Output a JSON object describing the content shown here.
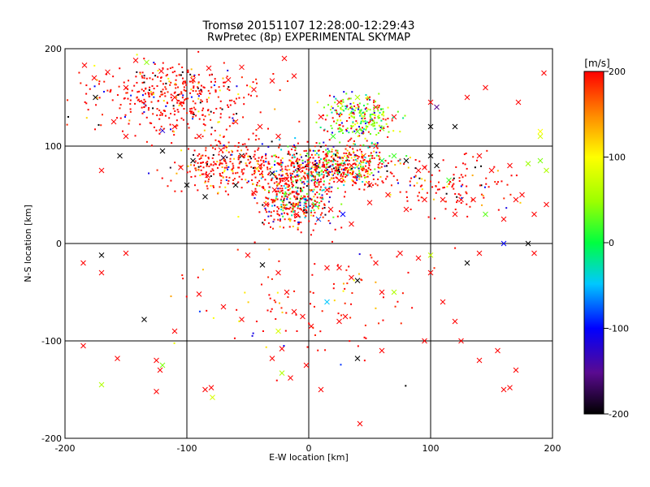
{
  "chart_data": {
    "type": "scatter",
    "title": "Tromsø 20151107 12:28:00-12:29:43",
    "subtitle": "RwPretec (8p) EXPERIMENTAL SKYMAP",
    "xlabel": "E-W location [km]",
    "ylabel": "N-S location [km]",
    "xlim": [
      -200,
      200
    ],
    "ylim": [
      -200,
      200
    ],
    "x_ticks": [
      "-200",
      "-100",
      "0",
      "100",
      "200"
    ],
    "y_ticks": [
      "-200",
      "-100",
      "0",
      "100",
      "200"
    ],
    "grid": true,
    "colorbar": {
      "label": "[m/s]",
      "range": [
        -200,
        200
      ],
      "ticks": [
        "200",
        "100",
        "0",
        "-100",
        "-200"
      ],
      "colormap": "rainbow (black-purple-blue-cyan-green-yellow-red)"
    },
    "markers": [
      "x",
      "dot"
    ],
    "points": [
      [
        -184,
        183,
        200,
        "x"
      ],
      [
        -176,
        170,
        200,
        "x"
      ],
      [
        -165,
        176,
        200,
        "x"
      ],
      [
        -150,
        160,
        200,
        "x"
      ],
      [
        -142,
        188,
        200,
        "x"
      ],
      [
        -133,
        186,
        45,
        "x"
      ],
      [
        -121,
        177,
        200,
        "x"
      ],
      [
        -110,
        150,
        200,
        "x"
      ],
      [
        -95,
        168,
        200,
        "x"
      ],
      [
        -82,
        180,
        200,
        "x"
      ],
      [
        -66,
        168,
        200,
        "x"
      ],
      [
        -55,
        181,
        200,
        "x"
      ],
      [
        -45,
        158,
        200,
        "x"
      ],
      [
        -30,
        167,
        200,
        "x"
      ],
      [
        -20,
        190,
        200,
        "x"
      ],
      [
        -12,
        172,
        200,
        "x"
      ],
      [
        -60,
        125,
        200,
        "x"
      ],
      [
        -40,
        120,
        200,
        "x"
      ],
      [
        -25,
        110,
        200,
        "x"
      ],
      [
        -90,
        110,
        200,
        "x"
      ],
      [
        -175,
        150,
        -200,
        "x"
      ],
      [
        -160,
        125,
        200,
        "x"
      ],
      [
        -150,
        110,
        200,
        "x"
      ],
      [
        -120,
        116,
        -120,
        "x"
      ],
      [
        -110,
        120,
        200,
        "x"
      ],
      [
        -72,
        96,
        200,
        "x"
      ],
      [
        -170,
        75,
        200,
        "x"
      ],
      [
        -155,
        90,
        -200,
        "x"
      ],
      [
        -120,
        95,
        -200,
        "x"
      ],
      [
        -105,
        78,
        200,
        "x"
      ],
      [
        -95,
        85,
        -200,
        "x"
      ],
      [
        -83,
        70,
        200,
        "x"
      ],
      [
        -70,
        88,
        -180,
        "x"
      ],
      [
        -55,
        90,
        -200,
        "x"
      ],
      [
        -40,
        80,
        200,
        "x"
      ],
      [
        -30,
        72,
        -200,
        "x"
      ],
      [
        -18,
        66,
        200,
        "x"
      ],
      [
        -8,
        75,
        200,
        "x"
      ],
      [
        -60,
        60,
        -200,
        "x"
      ],
      [
        -45,
        52,
        200,
        "x"
      ],
      [
        -100,
        60,
        -200,
        "x"
      ],
      [
        -85,
        48,
        -200,
        "x"
      ],
      [
        -35,
        40,
        200,
        "x"
      ],
      [
        -20,
        38,
        120,
        "x"
      ],
      [
        -10,
        30,
        200,
        "x"
      ],
      [
        -28,
        55,
        200,
        "x"
      ],
      [
        5,
        40,
        10,
        "x"
      ],
      [
        15,
        55,
        200,
        "x"
      ],
      [
        25,
        65,
        200,
        "x"
      ],
      [
        35,
        80,
        200,
        "x"
      ],
      [
        45,
        90,
        180,
        "x"
      ],
      [
        55,
        100,
        200,
        "x"
      ],
      [
        40,
        70,
        -30,
        "x"
      ],
      [
        50,
        60,
        200,
        "x"
      ],
      [
        60,
        85,
        0,
        "x"
      ],
      [
        70,
        90,
        20,
        "x"
      ],
      [
        80,
        85,
        -200,
        "x"
      ],
      [
        90,
        75,
        200,
        "x"
      ],
      [
        95,
        78,
        200,
        "x"
      ],
      [
        100,
        90,
        -200,
        "x"
      ],
      [
        105,
        80,
        -200,
        "x"
      ],
      [
        8,
        25,
        -80,
        "x"
      ],
      [
        18,
        35,
        200,
        "x"
      ],
      [
        28,
        30,
        -100,
        "x"
      ],
      [
        35,
        20,
        200,
        "x"
      ],
      [
        50,
        42,
        200,
        "x"
      ],
      [
        65,
        50,
        200,
        "x"
      ],
      [
        80,
        35,
        200,
        "x"
      ],
      [
        95,
        45,
        200,
        "x"
      ],
      [
        110,
        45,
        200,
        "x"
      ],
      [
        120,
        30,
        200,
        "x"
      ],
      [
        135,
        45,
        200,
        "x"
      ],
      [
        145,
        30,
        30,
        "x"
      ],
      [
        160,
        25,
        200,
        "x"
      ],
      [
        170,
        45,
        200,
        "x"
      ],
      [
        185,
        30,
        200,
        "x"
      ],
      [
        195,
        40,
        200,
        "x"
      ],
      [
        175,
        50,
        200,
        "x"
      ],
      [
        165,
        80,
        200,
        "x"
      ],
      [
        180,
        82,
        50,
        "x"
      ],
      [
        190,
        85,
        40,
        "x"
      ],
      [
        195,
        75,
        60,
        "x"
      ],
      [
        150,
        75,
        200,
        "x"
      ],
      [
        140,
        90,
        200,
        "x"
      ],
      [
        125,
        45,
        200,
        "x"
      ],
      [
        115,
        65,
        20,
        "x"
      ],
      [
        190,
        110,
        80,
        "x"
      ],
      [
        190,
        115,
        100,
        "x"
      ],
      [
        120,
        120,
        -200,
        "x"
      ],
      [
        105,
        140,
        -150,
        "x"
      ],
      [
        100,
        145,
        200,
        "x"
      ],
      [
        100,
        120,
        -200,
        "x"
      ],
      [
        130,
        150,
        200,
        "x"
      ],
      [
        145,
        160,
        200,
        "x"
      ],
      [
        172,
        145,
        200,
        "x"
      ],
      [
        193,
        175,
        200,
        "x"
      ],
      [
        70,
        130,
        200,
        "x"
      ],
      [
        60,
        118,
        40,
        "x"
      ],
      [
        40,
        115,
        30,
        "x"
      ],
      [
        20,
        110,
        20,
        "x"
      ],
      [
        10,
        130,
        200,
        "x"
      ],
      [
        25,
        145,
        200,
        "x"
      ],
      [
        40,
        150,
        60,
        "x"
      ],
      [
        55,
        140,
        200,
        "x"
      ],
      [
        -170,
        -12,
        -200,
        "x"
      ],
      [
        -185,
        -20,
        200,
        "x"
      ],
      [
        -170,
        -30,
        200,
        "x"
      ],
      [
        -150,
        -10,
        200,
        "x"
      ],
      [
        -185,
        -105,
        200,
        "x"
      ],
      [
        -157,
        -118,
        200,
        "x"
      ],
      [
        -135,
        -78,
        -200,
        "x"
      ],
      [
        -110,
        -90,
        200,
        "x"
      ],
      [
        -125,
        -120,
        200,
        "x"
      ],
      [
        -122,
        -130,
        200,
        "x"
      ],
      [
        -120,
        -125,
        40,
        "x"
      ],
      [
        -125,
        -152,
        200,
        "x"
      ],
      [
        -170,
        -145,
        60,
        "x"
      ],
      [
        -85,
        -150,
        200,
        "x"
      ],
      [
        -80,
        -148,
        200,
        "x"
      ],
      [
        -79,
        -158,
        80,
        "x"
      ],
      [
        -90,
        -52,
        200,
        "x"
      ],
      [
        -70,
        -65,
        200,
        "x"
      ],
      [
        -55,
        -78,
        200,
        "x"
      ],
      [
        -38,
        -22,
        -200,
        "x"
      ],
      [
        -50,
        -12,
        200,
        "x"
      ],
      [
        -25,
        -30,
        200,
        "x"
      ],
      [
        -18,
        -50,
        200,
        "x"
      ],
      [
        -12,
        -70,
        200,
        "x"
      ],
      [
        -5,
        -75,
        200,
        "x"
      ],
      [
        -25,
        -90,
        80,
        "x"
      ],
      [
        -22,
        -108,
        200,
        "x"
      ],
      [
        -30,
        -118,
        200,
        "x"
      ],
      [
        -22,
        -133,
        60,
        "x"
      ],
      [
        -15,
        -138,
        200,
        "x"
      ],
      [
        -2,
        -125,
        200,
        "x"
      ],
      [
        2,
        -85,
        200,
        "x"
      ],
      [
        15,
        -25,
        200,
        "x"
      ],
      [
        25,
        -25,
        200,
        "x"
      ],
      [
        35,
        -35,
        200,
        "x"
      ],
      [
        40,
        -38,
        -200,
        "x"
      ],
      [
        55,
        -20,
        200,
        "x"
      ],
      [
        60,
        -50,
        200,
        "x"
      ],
      [
        70,
        -50,
        60,
        "x"
      ],
      [
        75,
        -10,
        200,
        "x"
      ],
      [
        90,
        -15,
        200,
        "x"
      ],
      [
        100,
        -30,
        200,
        "x"
      ],
      [
        110,
        -60,
        200,
        "x"
      ],
      [
        120,
        -80,
        200,
        "x"
      ],
      [
        125,
        -100,
        200,
        "x"
      ],
      [
        140,
        -120,
        200,
        "x"
      ],
      [
        160,
        -150,
        200,
        "x"
      ],
      [
        165,
        -148,
        200,
        "x"
      ],
      [
        170,
        -130,
        200,
        "x"
      ],
      [
        155,
        -110,
        200,
        "x"
      ],
      [
        130,
        -20,
        -200,
        "x"
      ],
      [
        140,
        -10,
        200,
        "x"
      ],
      [
        160,
        0,
        -100,
        "x"
      ],
      [
        180,
        0,
        -200,
        "x"
      ],
      [
        185,
        -10,
        200,
        "x"
      ],
      [
        100,
        -12,
        70,
        "x"
      ],
      [
        95,
        -100,
        200,
        "x"
      ],
      [
        60,
        -110,
        200,
        "x"
      ],
      [
        40,
        -118,
        -200,
        "x"
      ],
      [
        42,
        -185,
        200,
        "x"
      ],
      [
        10,
        -150,
        200,
        "x"
      ],
      [
        15,
        -60,
        -50,
        "x"
      ],
      [
        30,
        -75,
        200,
        "x"
      ],
      [
        25,
        -80,
        200,
        "x"
      ]
    ]
  }
}
